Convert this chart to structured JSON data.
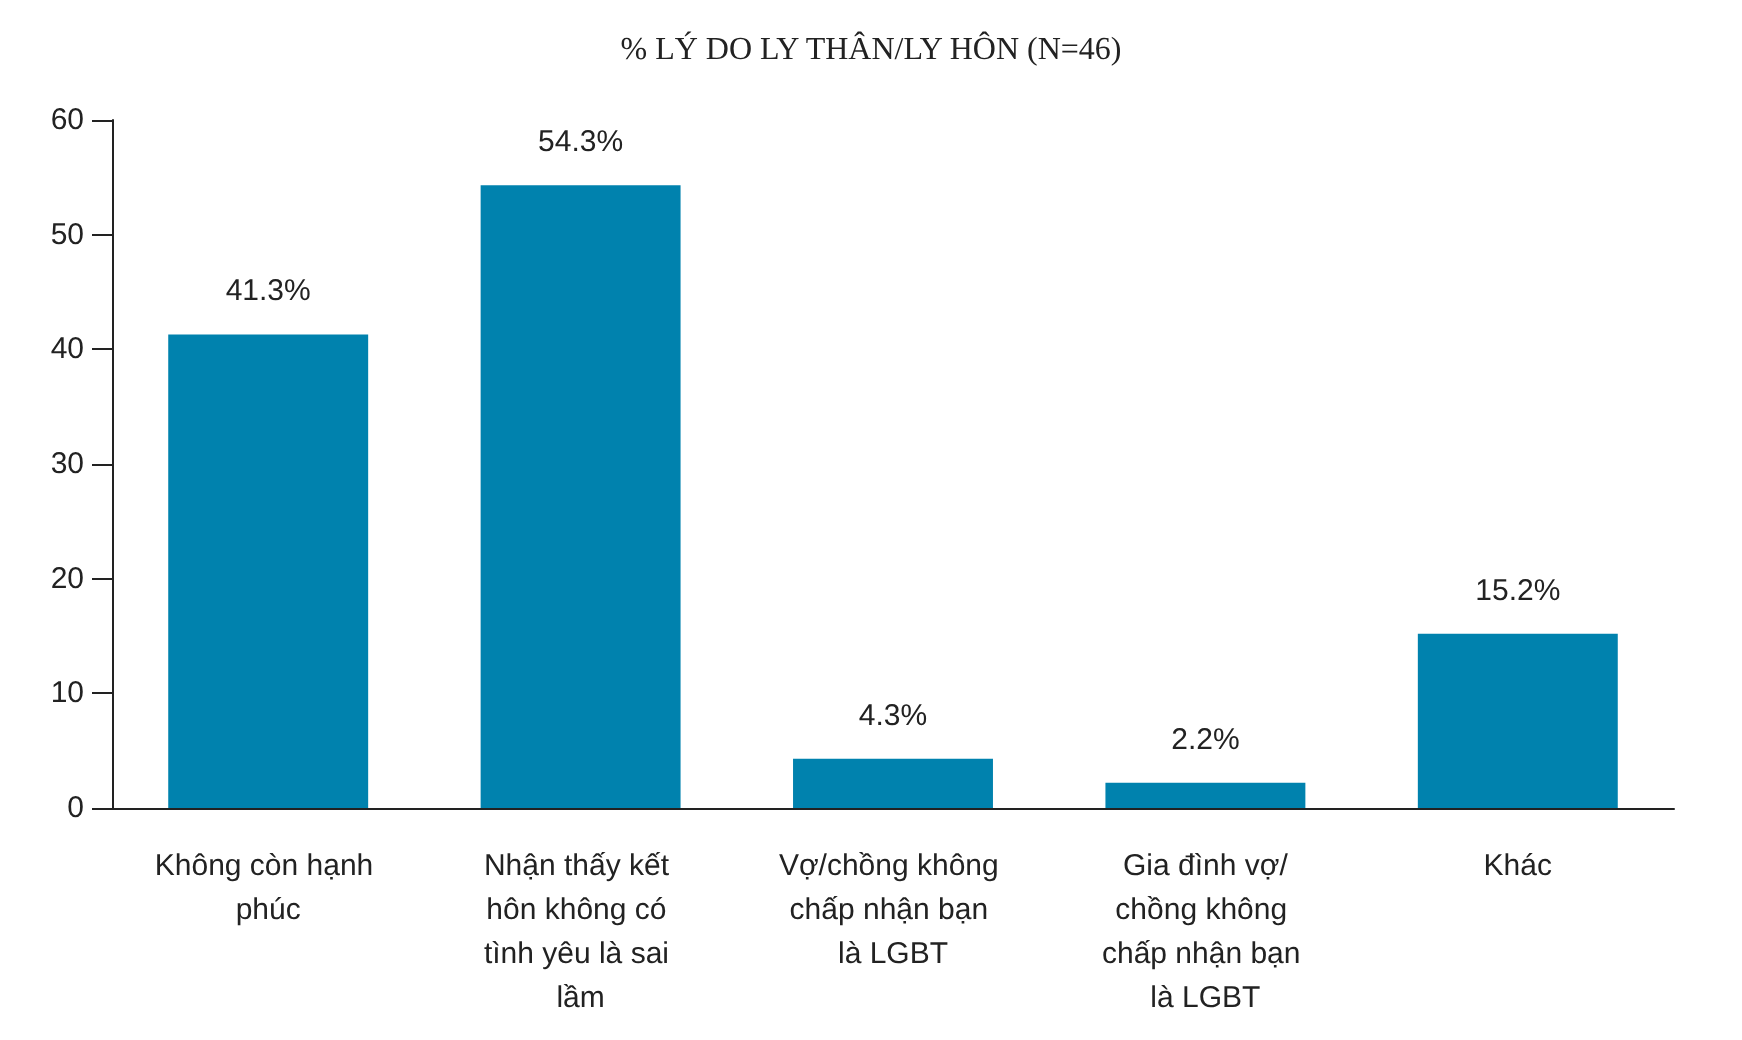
{
  "chart_data": {
    "type": "bar",
    "title": "% LÝ DO LY THÂN/LY HÔN (N=46)",
    "categories": [
      "Không còn hạnh phúc",
      "Nhận thấy kết hôn không có tình yêu là sai lầm",
      "Vợ/chồng không chấp nhận bạn là LGBT",
      "Gia đình vợ/chồng không chấp nhận bạn là LGBT",
      "Khác"
    ],
    "values": [
      41.3,
      54.3,
      4.3,
      2.2,
      15.2
    ],
    "value_labels": [
      "41.3%",
      "54.3%",
      "4.3%",
      "2.2%",
      "15.2%"
    ],
    "color": "#0082ae",
    "ylim": [
      0,
      60
    ],
    "yticks": [
      0,
      10,
      20,
      30,
      40,
      50,
      60
    ],
    "grid": false
  }
}
